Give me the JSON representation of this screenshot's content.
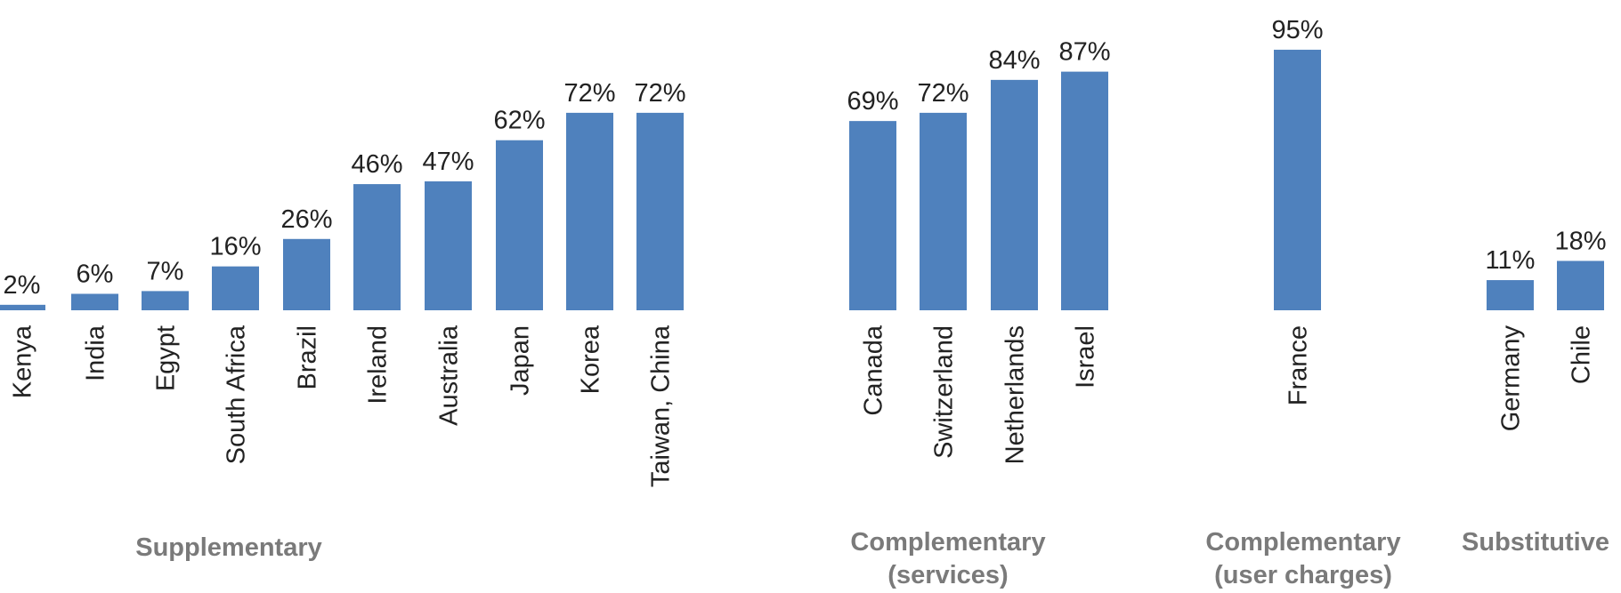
{
  "chart_data": {
    "type": "bar",
    "ylim": [
      0,
      100
    ],
    "bar_color": "#4f81bd",
    "value_suffix": "%",
    "categories": [
      "Kenya",
      "India",
      "Egypt",
      "South Africa",
      "Brazil",
      "Ireland",
      "Australia",
      "Japan",
      "Korea",
      "Taiwan, China",
      "Canada",
      "Switzerland",
      "Netherlands",
      "Israel",
      "France",
      "Germany",
      "Chile"
    ],
    "values": [
      2,
      6,
      7,
      16,
      26,
      46,
      47,
      62,
      72,
      72,
      69,
      72,
      84,
      87,
      95,
      11,
      18
    ],
    "value_labels": [
      "2%",
      "6%",
      "7%",
      "16%",
      "26%",
      "46%",
      "47%",
      "62%",
      "72%",
      "72%",
      "69%",
      "72%",
      "84%",
      "87%",
      "95%",
      "11%",
      "18%"
    ],
    "groups": [
      {
        "label_lines": [
          "Supplementary"
        ],
        "categories": [
          "Kenya",
          "India",
          "Egypt",
          "South Africa",
          "Brazil",
          "Ireland",
          "Australia",
          "Japan",
          "Korea",
          "Taiwan, China"
        ]
      },
      {
        "label_lines": [
          "Complementary",
          "(services)"
        ],
        "categories": [
          "Canada",
          "Switzerland",
          "Netherlands",
          "Israel"
        ]
      },
      {
        "label_lines": [
          "Complementary",
          "(user charges)"
        ],
        "categories": [
          "France"
        ]
      },
      {
        "label_lines": [
          "Substitutive"
        ],
        "categories": [
          "Germany",
          "Chile"
        ]
      }
    ]
  }
}
